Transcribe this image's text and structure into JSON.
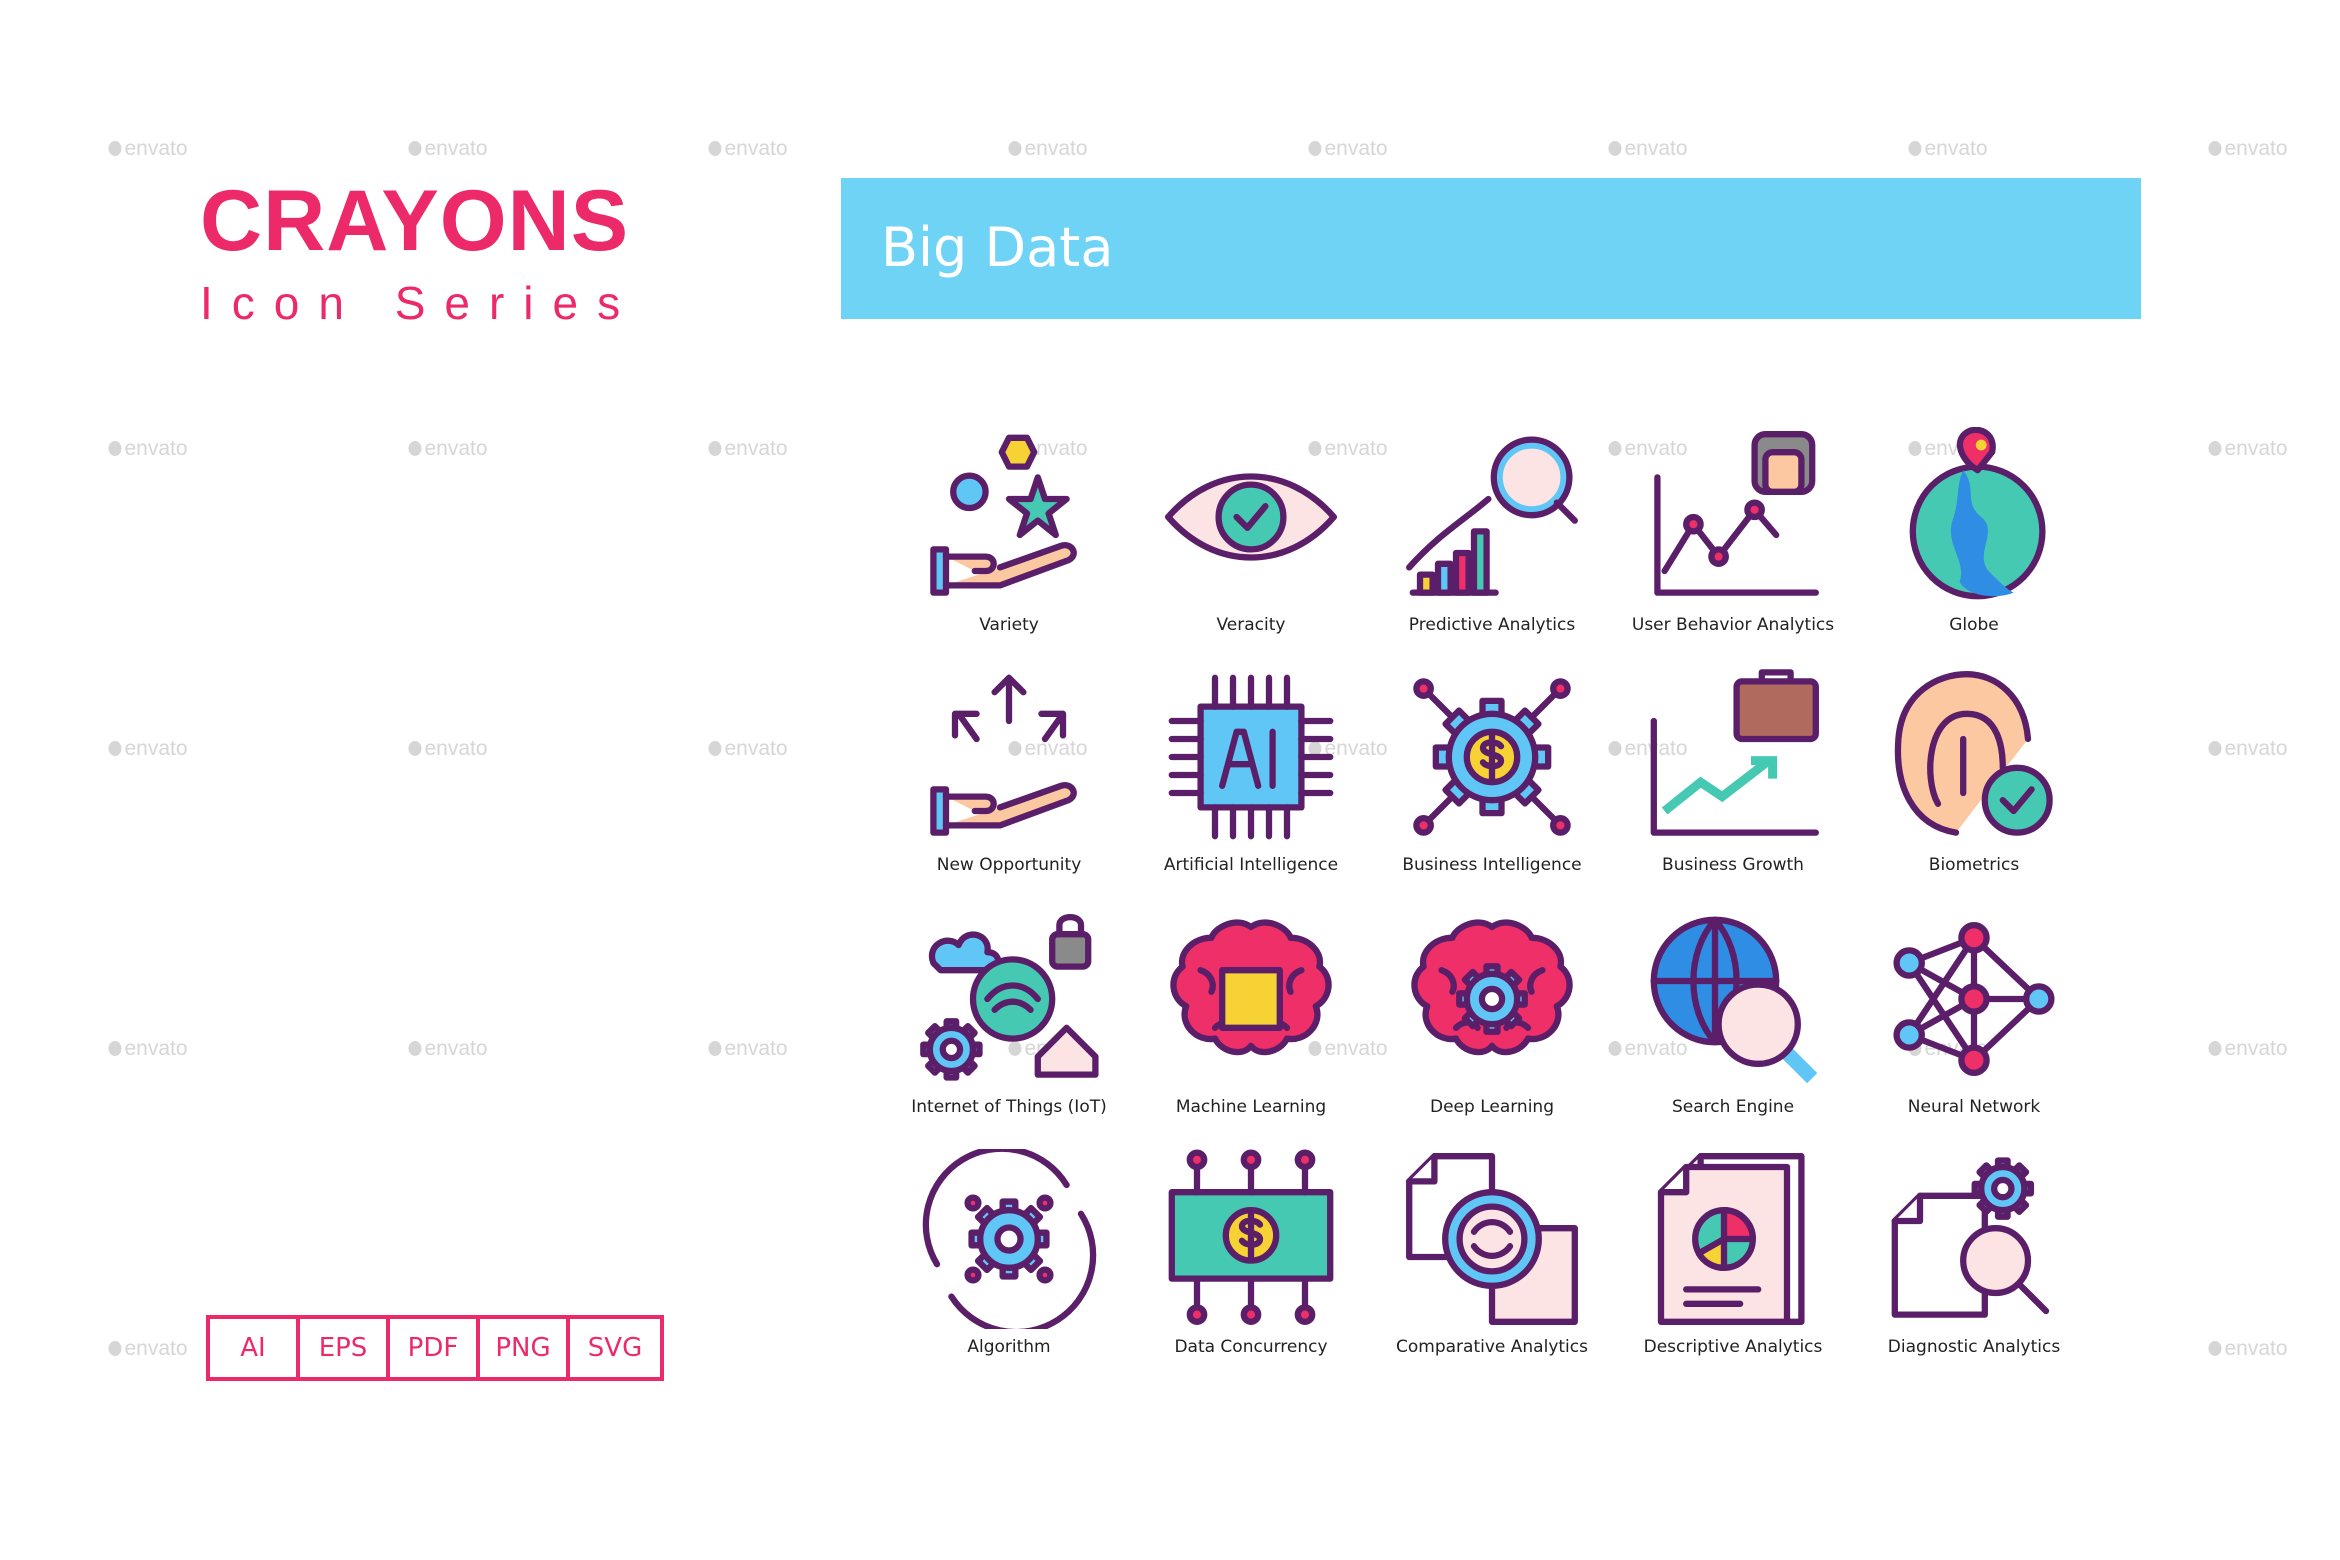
{
  "watermark": "envato",
  "brand": {
    "title": "CRAYONS",
    "subtitle": "Icon Series",
    "color": "#ec2a6a"
  },
  "banner": {
    "title": "Big Data",
    "color": "#6fd3f6"
  },
  "formats": [
    "AI",
    "EPS",
    "PDF",
    "PNG",
    "SVG"
  ],
  "icons": [
    {
      "label": "Variety",
      "icon": "hand-shapes-icon"
    },
    {
      "label": "Veracity",
      "icon": "eye-check-icon"
    },
    {
      "label": "Predictive Analytics",
      "icon": "chart-magnifier-icon"
    },
    {
      "label": "User Behavior Analytics",
      "icon": "user-line-chart-icon"
    },
    {
      "label": "Globe",
      "icon": "globe-pin-icon"
    },
    {
      "label": "New Opportunity",
      "icon": "hand-arrows-icon"
    },
    {
      "label": "Artificial Intelligence",
      "icon": "ai-chip-icon"
    },
    {
      "label": "Business Intelligence",
      "icon": "gear-dollar-icon"
    },
    {
      "label": "Business Growth",
      "icon": "briefcase-growth-icon"
    },
    {
      "label": "Biometrics",
      "icon": "fingerprint-check-icon"
    },
    {
      "label": "Internet of Things (IoT)",
      "icon": "iot-icon"
    },
    {
      "label": "Machine Learning",
      "icon": "brain-chip-icon"
    },
    {
      "label": "Deep Learning",
      "icon": "brain-gear-icon"
    },
    {
      "label": "Search Engine",
      "icon": "globe-search-icon"
    },
    {
      "label": "Neural Network",
      "icon": "neural-network-icon"
    },
    {
      "label": "Algorithm",
      "icon": "gear-cycle-icon"
    },
    {
      "label": "Data Concurrency",
      "icon": "money-circuit-icon"
    },
    {
      "label": "Comparative Analytics",
      "icon": "documents-sync-icon"
    },
    {
      "label": "Descriptive Analytics",
      "icon": "document-pie-icon"
    },
    {
      "label": "Diagnostic Analytics",
      "icon": "document-gear-search-icon"
    }
  ]
}
